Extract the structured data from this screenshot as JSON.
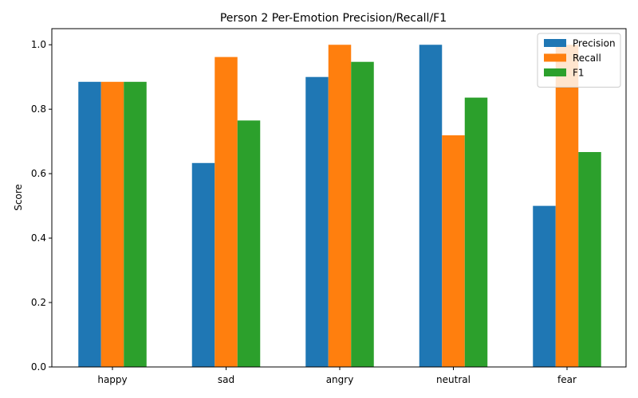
{
  "chart_data": {
    "type": "bar",
    "title": "Person 2 Per-Emotion Precision/Recall/F1",
    "xlabel": "",
    "ylabel": "Score",
    "ylim": [
      0,
      1.05
    ],
    "yticks": [
      "0.0",
      "0.2",
      "0.4",
      "0.6",
      "0.8",
      "1.0"
    ],
    "categories": [
      "happy",
      "sad",
      "angry",
      "neutral",
      "fear"
    ],
    "series": [
      {
        "name": "Precision",
        "color": "#1f77b4",
        "values": [
          0.885,
          0.633,
          0.9,
          1.0,
          0.5
        ]
      },
      {
        "name": "Recall",
        "color": "#ff7f0e",
        "values": [
          0.885,
          0.962,
          1.0,
          0.719,
          1.0
        ]
      },
      {
        "name": "F1",
        "color": "#2ca02c",
        "values": [
          0.885,
          0.765,
          0.947,
          0.836,
          0.667
        ]
      }
    ],
    "grid": false,
    "legend_position": "top-right"
  }
}
